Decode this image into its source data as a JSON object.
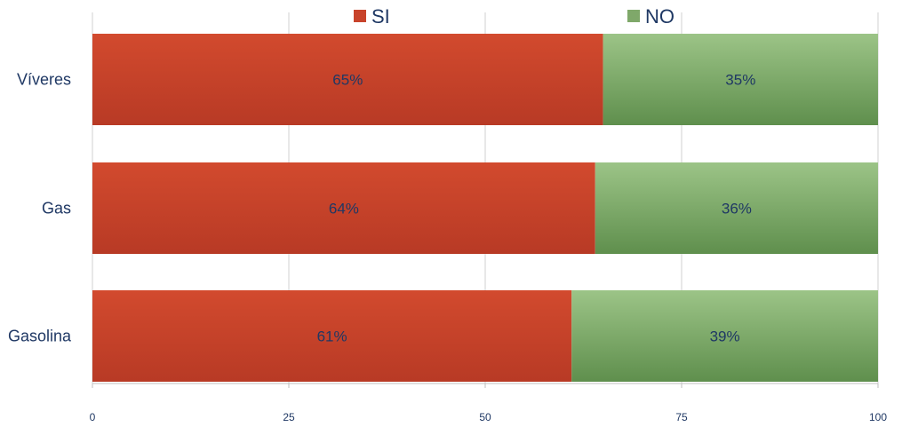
{
  "chart_data": {
    "type": "bar",
    "orientation": "horizontal",
    "stacked": true,
    "categories": [
      "Víveres",
      "Gas",
      "Gasolina"
    ],
    "series": [
      {
        "name": "SI",
        "values": [
          65,
          64,
          61
        ],
        "labels": [
          "65%",
          "64%",
          "61%"
        ],
        "color": "#c8432b"
      },
      {
        "name": "NO",
        "values": [
          35,
          36,
          39
        ],
        "labels": [
          "35%",
          "36%",
          "39%"
        ],
        "color": "#7fa86a"
      }
    ],
    "xlim": [
      0,
      100
    ],
    "xticks": [
      0,
      25,
      50,
      75,
      100
    ],
    "xtick_labels": [
      "0",
      "25",
      "50",
      "75",
      "100"
    ],
    "grid": true,
    "legend_position": "top"
  }
}
